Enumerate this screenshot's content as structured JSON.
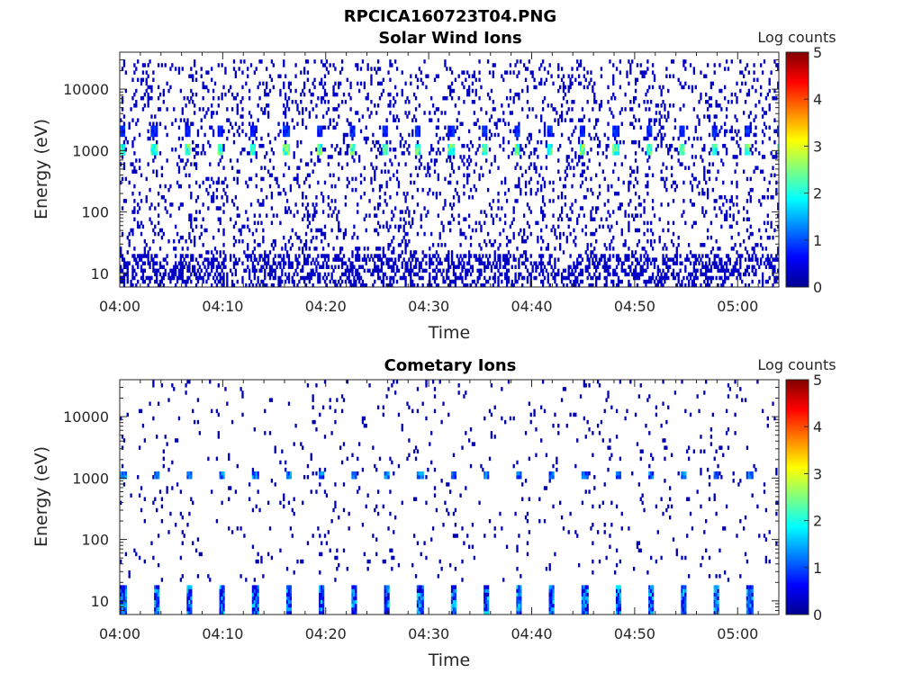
{
  "figure": {
    "title": "RPCICA160723T04.PNG"
  },
  "colormap": [
    "#00008f",
    "#0000ff",
    "#0080ff",
    "#00ffff",
    "#80ff80",
    "#ffff00",
    "#ff8000",
    "#ff0000",
    "#800000"
  ],
  "chart_data": [
    {
      "type": "heatmap",
      "title": "Solar Wind Ions",
      "xlabel": "Time",
      "ylabel": "Energy (eV)",
      "xscale": "time",
      "yscale": "log",
      "xlim": [
        "04:00",
        "05:04"
      ],
      "ylim": [
        6,
        40000
      ],
      "xticks": [
        "04:00",
        "04:10",
        "04:20",
        "04:30",
        "04:40",
        "04:50",
        "05:00"
      ],
      "yticks": [
        "10",
        "100",
        "1000",
        "10000"
      ],
      "colorbar": {
        "label": "Log counts",
        "range": [
          0,
          5
        ],
        "ticks": [
          "0",
          "1",
          "2",
          "3",
          "4",
          "5"
        ]
      },
      "grid": false,
      "features": {
        "burst_period_minutes": 3.2,
        "burst_start_minute": 3,
        "burst_energies_eV": [
          1000,
          2000
        ],
        "burst_log_counts": [
          1.0,
          2.8
        ],
        "background_energy_range_eV": [
          8,
          30000
        ],
        "background_log_counts": 0.3,
        "low_energy_band_eV": [
          6,
          20
        ]
      }
    },
    {
      "type": "heatmap",
      "title": "Cometary Ions",
      "xlabel": "Time",
      "ylabel": "Energy (eV)",
      "xscale": "time",
      "yscale": "log",
      "xlim": [
        "04:00",
        "05:04"
      ],
      "ylim": [
        6,
        40000
      ],
      "xticks": [
        "04:00",
        "04:10",
        "04:20",
        "04:30",
        "04:40",
        "04:50",
        "05:00"
      ],
      "yticks": [
        "10",
        "100",
        "1000",
        "10000"
      ],
      "colorbar": {
        "label": "Log counts",
        "range": [
          0,
          5
        ],
        "ticks": [
          "0",
          "1",
          "2",
          "3",
          "4",
          "5"
        ]
      },
      "grid": false,
      "features": {
        "burst_period_minutes": 3.2,
        "burst_start_minute": 0,
        "burst_energies_eV": [
          1100
        ],
        "burst_log_counts": [
          0.6,
          1.6
        ],
        "low_energy_burst_range_eV": [
          6,
          18
        ],
        "low_energy_burst_log_counts": [
          0.2,
          1.8
        ],
        "background_log_counts": 0.2
      }
    }
  ]
}
